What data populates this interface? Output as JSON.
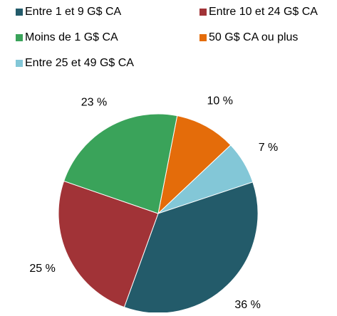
{
  "chart_data": {
    "type": "pie",
    "categories": [
      "Entre 1 et 9 G$ CA",
      "Entre 10 et 24 G$ CA",
      "Moins de 1 G$ CA",
      "50 G$ CA ou plus",
      "Entre 25 et 49 G$ CA"
    ],
    "values": [
      36,
      25,
      23,
      10,
      7
    ],
    "value_labels": [
      "36 %",
      "25 %",
      "23 %",
      "10 %",
      "7 %"
    ],
    "colors": [
      "#235b6a",
      "#a13337",
      "#3aa35a",
      "#e46c0a",
      "#83c7d7"
    ]
  }
}
